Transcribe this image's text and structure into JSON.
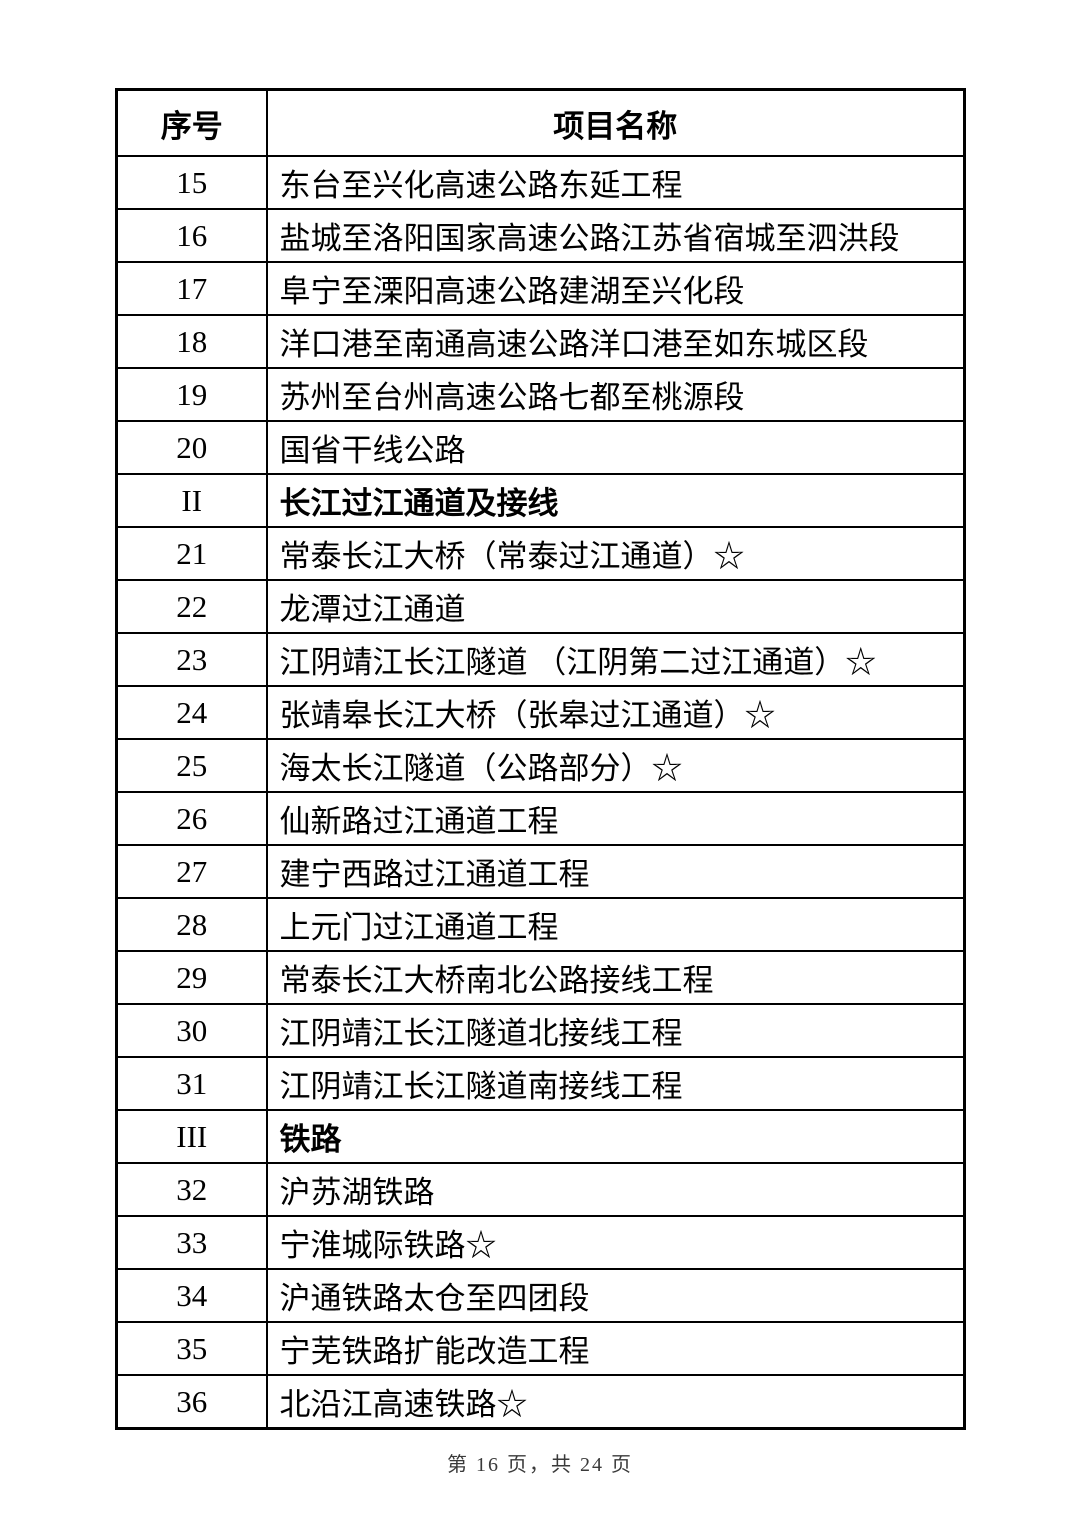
{
  "table": {
    "headers": {
      "no": "序号",
      "name": "项目名称"
    },
    "rows": [
      {
        "no": "15",
        "name": "东台至兴化高速公路东延工程",
        "section": false
      },
      {
        "no": "16",
        "name": "盐城至洛阳国家高速公路江苏省宿城至泗洪段",
        "section": false
      },
      {
        "no": "17",
        "name": "阜宁至溧阳高速公路建湖至兴化段",
        "section": false
      },
      {
        "no": "18",
        "name": "洋口港至南通高速公路洋口港至如东城区段",
        "section": false
      },
      {
        "no": "19",
        "name": "苏州至台州高速公路七都至桃源段",
        "section": false
      },
      {
        "no": "20",
        "name": "国省干线公路",
        "section": false
      },
      {
        "no": "II",
        "name": "长江过江通道及接线",
        "section": true
      },
      {
        "no": "21",
        "name": "常泰长江大桥（常泰过江通道）☆",
        "section": false
      },
      {
        "no": "22",
        "name": "龙潭过江通道",
        "section": false
      },
      {
        "no": "23",
        "name": "江阴靖江长江隧道 （江阴第二过江通道）☆",
        "section": false
      },
      {
        "no": "24",
        "name": "张靖皋长江大桥（张皋过江通道）☆",
        "section": false
      },
      {
        "no": "25",
        "name": "海太长江隧道（公路部分）☆",
        "section": false
      },
      {
        "no": "26",
        "name": "仙新路过江通道工程",
        "section": false
      },
      {
        "no": "27",
        "name": "建宁西路过江通道工程",
        "section": false
      },
      {
        "no": "28",
        "name": "上元门过江通道工程",
        "section": false
      },
      {
        "no": "29",
        "name": "常泰长江大桥南北公路接线工程",
        "section": false
      },
      {
        "no": "30",
        "name": "江阴靖江长江隧道北接线工程",
        "section": false
      },
      {
        "no": "31",
        "name": "江阴靖江长江隧道南接线工程",
        "section": false
      },
      {
        "no": "III",
        "name": "铁路",
        "section": true
      },
      {
        "no": "32",
        "name": "沪苏湖铁路",
        "section": false
      },
      {
        "no": "33",
        "name": "宁淮城际铁路☆",
        "section": false
      },
      {
        "no": "34",
        "name": "沪通铁路太仓至四团段",
        "section": false
      },
      {
        "no": "35",
        "name": "宁芜铁路扩能改造工程",
        "section": false
      },
      {
        "no": "36",
        "name": "北沿江高速铁路☆",
        "section": false
      }
    ]
  },
  "footer": {
    "page_indicator": "第 16 页，共 24 页"
  }
}
